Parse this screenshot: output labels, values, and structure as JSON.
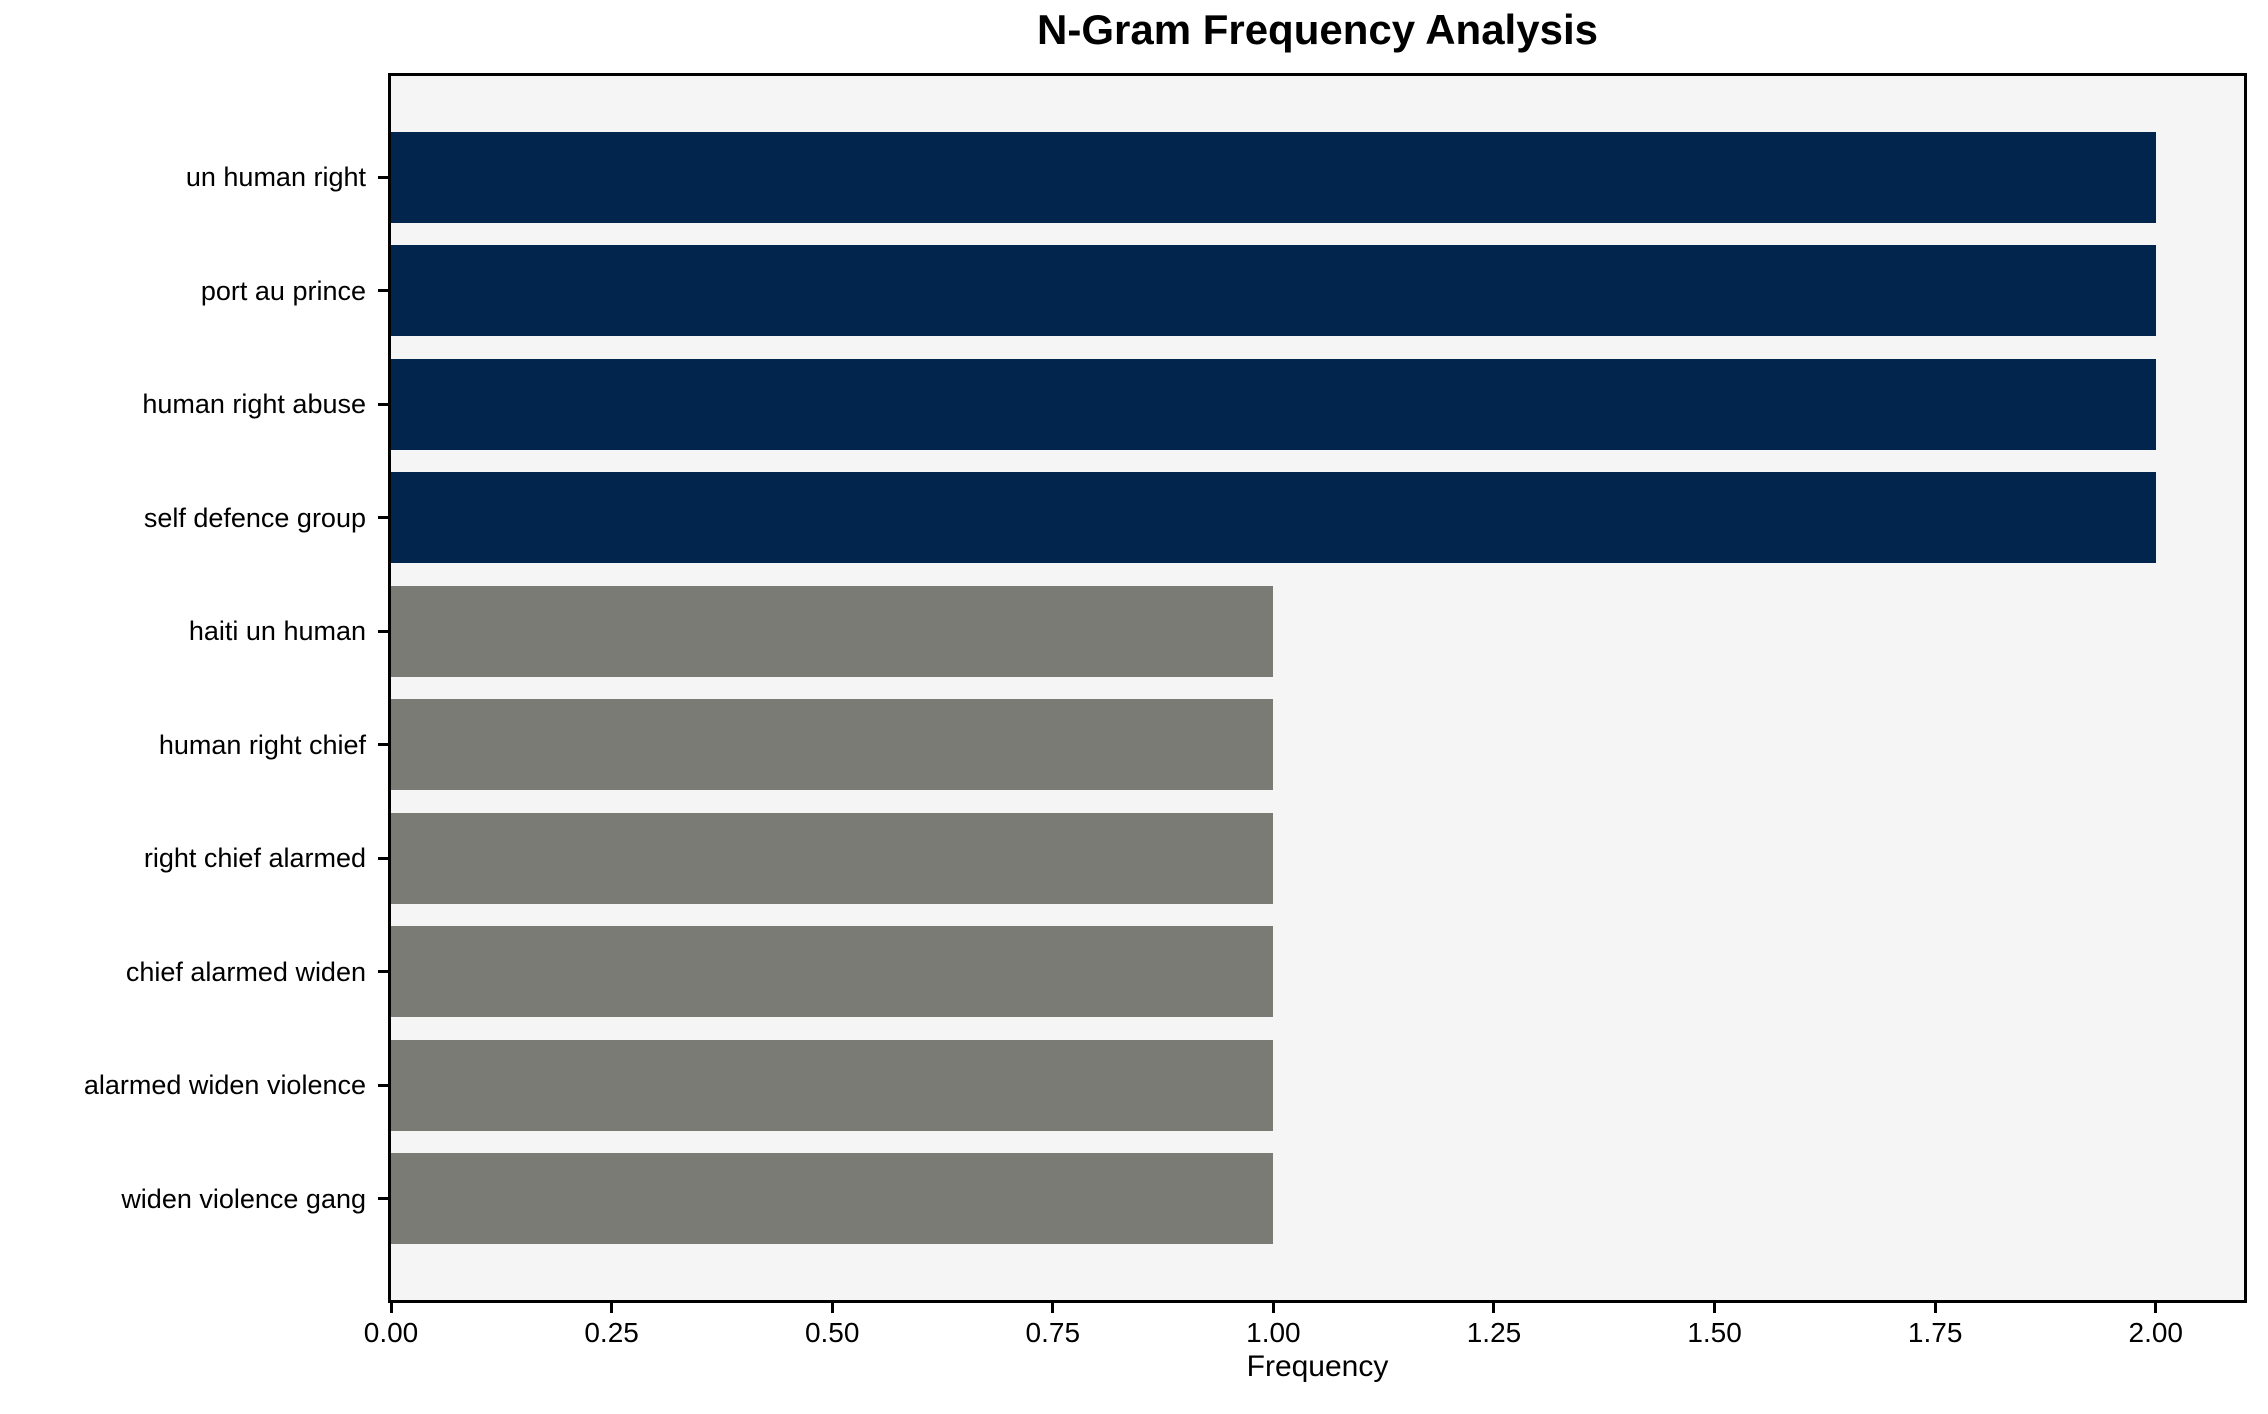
{
  "chart_data": {
    "type": "bar",
    "orientation": "horizontal",
    "title": "N-Gram Frequency Analysis",
    "xlabel": "Frequency",
    "ylabel": "",
    "categories": [
      "un human right",
      "port au prince",
      "human right abuse",
      "self defence group",
      "haiti un human",
      "human right chief",
      "right chief alarmed",
      "chief alarmed widen",
      "alarmed widen violence",
      "widen violence gang"
    ],
    "values": [
      2,
      2,
      2,
      2,
      1,
      1,
      1,
      1,
      1,
      1
    ],
    "bar_colors": [
      "#02254d",
      "#02254d",
      "#02254d",
      "#02254d",
      "#7b7b76",
      "#7b7b76",
      "#7b7b76",
      "#7b7b76",
      "#7b7b76",
      "#7b7b76"
    ],
    "xlim": [
      0,
      2.1
    ],
    "xticks": [
      0,
      0.25,
      0.5,
      0.75,
      1.0,
      1.25,
      1.5,
      1.75,
      2.0
    ],
    "xtick_labels": [
      "0.00",
      "0.25",
      "0.50",
      "0.75",
      "1.00",
      "1.25",
      "1.50",
      "1.75",
      "2.00"
    ],
    "grid": false,
    "legend": "none",
    "colors": {
      "highlight_bar": "#02254d",
      "regular_bar": "#7b7b76",
      "plot_background": "#f5f5f5",
      "figure_background": "#ffffff",
      "axis": "#000000",
      "text": "#000000"
    }
  }
}
